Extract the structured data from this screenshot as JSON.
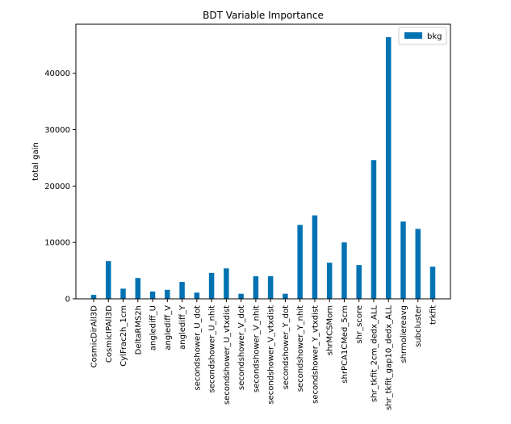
{
  "chart_data": {
    "type": "bar",
    "title": "BDT Variable Importance",
    "xlabel": "",
    "ylabel": "total gain",
    "ylim": [
      0,
      48700
    ],
    "yticks": [
      0,
      10000,
      20000,
      30000,
      40000
    ],
    "legend": {
      "position": "top-right"
    },
    "grid": false,
    "categories": [
      "CosmicDirAll3D",
      "CosmicIPAll3D",
      "CylFrac2h_1cm",
      "DeltaRMS2h",
      "anglediff_U",
      "anglediff_V",
      "anglediff_Y",
      "secondshower_U_dot",
      "secondshower_U_nhit",
      "secondshower_U_vtxdist",
      "secondshower_V_dot",
      "secondshower_V_nhit",
      "secondshower_V_vtxdist",
      "secondshower_Y_dot",
      "secondshower_Y_nhit",
      "secondshower_Y_vtxdist",
      "shrMCSMom",
      "shrPCA1CMed_5cm",
      "shr_score",
      "shr_tkfit_2cm_dedx_ALL",
      "shr_tkfit_gap10_dedx_ALL",
      "shrmoliereavg",
      "subcluster",
      "trkfit"
    ],
    "series": [
      {
        "name": "bkg",
        "color": "#0072b2",
        "values": [
          700,
          6700,
          1800,
          3700,
          1300,
          1600,
          3000,
          1100,
          4600,
          5400,
          900,
          4000,
          4000,
          900,
          13100,
          14800,
          6400,
          10000,
          6000,
          24600,
          46400,
          13700,
          12400,
          5700
        ]
      }
    ]
  }
}
